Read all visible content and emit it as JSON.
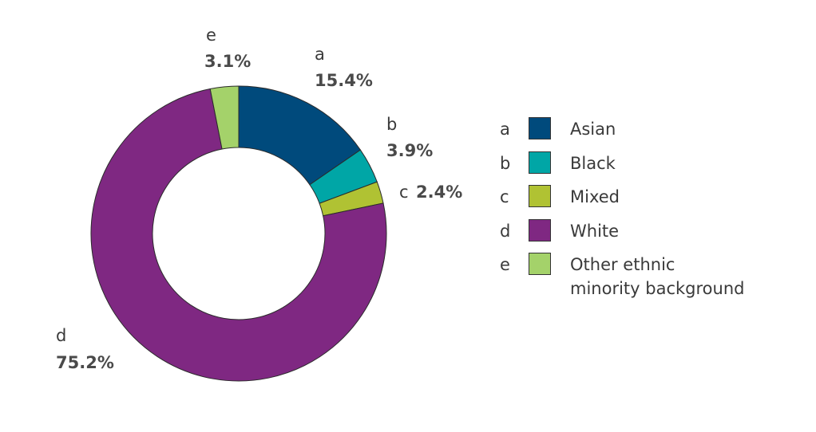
{
  "chart_data": {
    "type": "pie",
    "donut": true,
    "categories": [
      "a",
      "b",
      "c",
      "d",
      "e"
    ],
    "values": [
      15.4,
      3.9,
      2.4,
      75.2,
      3.1
    ],
    "value_labels": [
      "15.4%",
      "3.9%",
      "2.4%",
      "75.2%",
      "3.1%"
    ],
    "legend_labels": [
      "Asian",
      "Black",
      "Mixed",
      "White",
      "Other ethnic minority background"
    ],
    "colors": [
      "#004a7c",
      "#00a6a6",
      "#b0c233",
      "#7f2882",
      "#a4d26a"
    ],
    "legend_placement": "right"
  },
  "legend": {
    "items": [
      {
        "letter": "a",
        "label": "Asian"
      },
      {
        "letter": "b",
        "label": "Black"
      },
      {
        "letter": "c",
        "label": "Mixed"
      },
      {
        "letter": "d",
        "label": "White"
      },
      {
        "letter": "e",
        "label": "Other ethnic\nminority background"
      }
    ]
  }
}
